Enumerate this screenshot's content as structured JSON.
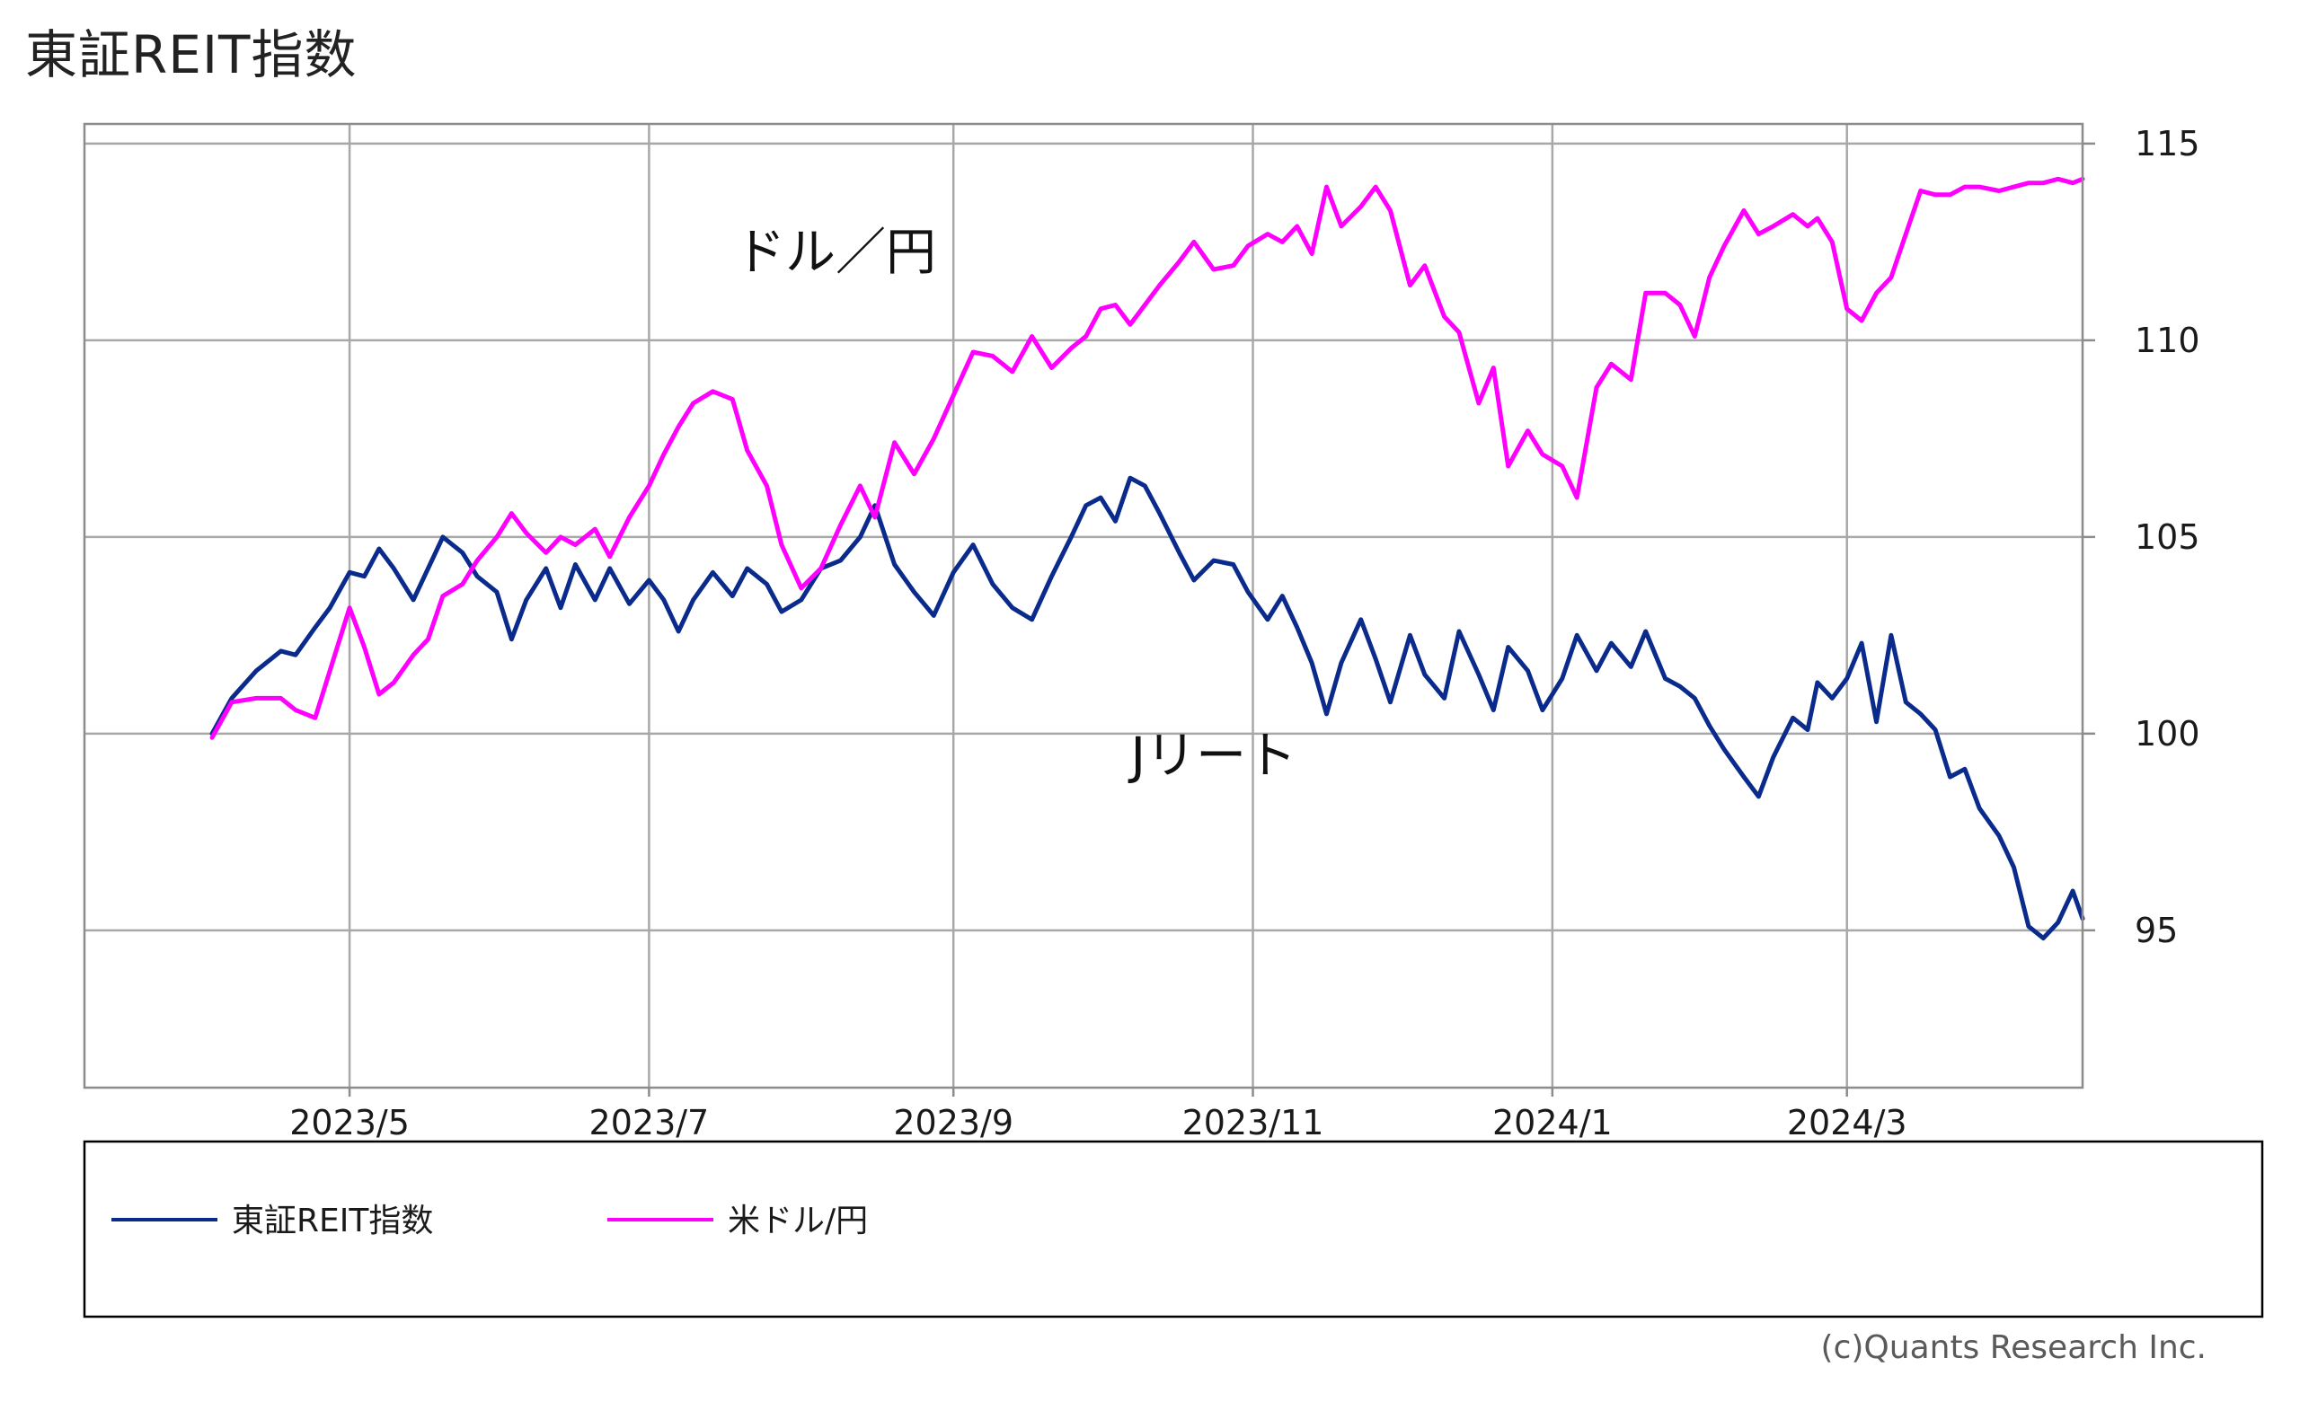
{
  "page": {
    "title": "東証REIT指数",
    "copyright": "(c)Quants Research Inc."
  },
  "chart_data": {
    "type": "line",
    "title": "東証REIT指数",
    "x_axis": {
      "type": "date",
      "range": [
        "2023-03-08",
        "2024-04-18"
      ],
      "tick_labels": [
        {
          "date": "2023-05-01",
          "label": "2023/5"
        },
        {
          "date": "2023-07-01",
          "label": "2023/7"
        },
        {
          "date": "2023-09-01",
          "label": "2023/9"
        },
        {
          "date": "2023-11-01",
          "label": "2023/11"
        },
        {
          "date": "2024-01-01",
          "label": "2024/1"
        },
        {
          "date": "2024-03-01",
          "label": "2024/3"
        }
      ]
    },
    "y_axis": {
      "position": "right",
      "range": [
        91,
        115.5
      ],
      "ticks": [
        95,
        100,
        105,
        110,
        115
      ]
    },
    "grid": true,
    "legend_position": "bottom",
    "series": [
      {
        "name": "東証REIT指数",
        "color": "#0a2b8c",
        "points": [
          [
            "2023-04-03",
            100.0
          ],
          [
            "2023-04-07",
            100.9
          ],
          [
            "2023-04-12",
            101.6
          ],
          [
            "2023-04-17",
            102.1
          ],
          [
            "2023-04-20",
            102.0
          ],
          [
            "2023-04-24",
            102.7
          ],
          [
            "2023-04-27",
            103.2
          ],
          [
            "2023-05-01",
            104.1
          ],
          [
            "2023-05-04",
            104.0
          ],
          [
            "2023-05-07",
            104.7
          ],
          [
            "2023-05-10",
            104.2
          ],
          [
            "2023-05-14",
            103.4
          ],
          [
            "2023-05-17",
            104.2
          ],
          [
            "2023-05-20",
            105.0
          ],
          [
            "2023-05-24",
            104.6
          ],
          [
            "2023-05-27",
            104.0
          ],
          [
            "2023-05-31",
            103.6
          ],
          [
            "2023-06-03",
            102.4
          ],
          [
            "2023-06-06",
            103.4
          ],
          [
            "2023-06-10",
            104.2
          ],
          [
            "2023-06-13",
            103.2
          ],
          [
            "2023-06-16",
            104.3
          ],
          [
            "2023-06-20",
            103.4
          ],
          [
            "2023-06-23",
            104.2
          ],
          [
            "2023-06-27",
            103.3
          ],
          [
            "2023-07-01",
            103.9
          ],
          [
            "2023-07-04",
            103.4
          ],
          [
            "2023-07-07",
            102.6
          ],
          [
            "2023-07-10",
            103.4
          ],
          [
            "2023-07-14",
            104.1
          ],
          [
            "2023-07-18",
            103.5
          ],
          [
            "2023-07-21",
            104.2
          ],
          [
            "2023-07-25",
            103.8
          ],
          [
            "2023-07-28",
            103.1
          ],
          [
            "2023-08-01",
            103.4
          ],
          [
            "2023-08-05",
            104.2
          ],
          [
            "2023-08-09",
            104.4
          ],
          [
            "2023-08-13",
            105.0
          ],
          [
            "2023-08-16",
            105.8
          ],
          [
            "2023-08-20",
            104.3
          ],
          [
            "2023-08-24",
            103.6
          ],
          [
            "2023-08-28",
            103.0
          ],
          [
            "2023-09-01",
            104.1
          ],
          [
            "2023-09-05",
            104.8
          ],
          [
            "2023-09-09",
            103.8
          ],
          [
            "2023-09-13",
            103.2
          ],
          [
            "2023-09-17",
            102.9
          ],
          [
            "2023-09-21",
            104.0
          ],
          [
            "2023-09-25",
            105.0
          ],
          [
            "2023-09-28",
            105.8
          ],
          [
            "2023-10-01",
            106.0
          ],
          [
            "2023-10-04",
            105.4
          ],
          [
            "2023-10-07",
            106.5
          ],
          [
            "2023-10-10",
            106.3
          ],
          [
            "2023-10-13",
            105.6
          ],
          [
            "2023-10-17",
            104.6
          ],
          [
            "2023-10-20",
            103.9
          ],
          [
            "2023-10-24",
            104.4
          ],
          [
            "2023-10-28",
            104.3
          ],
          [
            "2023-10-31",
            103.6
          ],
          [
            "2023-11-04",
            102.9
          ],
          [
            "2023-11-07",
            103.5
          ],
          [
            "2023-11-10",
            102.7
          ],
          [
            "2023-11-13",
            101.8
          ],
          [
            "2023-11-16",
            100.5
          ],
          [
            "2023-11-19",
            101.8
          ],
          [
            "2023-11-23",
            102.9
          ],
          [
            "2023-11-26",
            101.9
          ],
          [
            "2023-11-29",
            100.8
          ],
          [
            "2023-12-03",
            102.5
          ],
          [
            "2023-12-06",
            101.5
          ],
          [
            "2023-12-10",
            100.9
          ],
          [
            "2023-12-13",
            102.6
          ],
          [
            "2023-12-17",
            101.5
          ],
          [
            "2023-12-20",
            100.6
          ],
          [
            "2023-12-23",
            102.2
          ],
          [
            "2023-12-27",
            101.6
          ],
          [
            "2023-12-30",
            100.6
          ],
          [
            "2024-01-03",
            101.4
          ],
          [
            "2024-01-06",
            102.5
          ],
          [
            "2024-01-10",
            101.6
          ],
          [
            "2024-01-13",
            102.3
          ],
          [
            "2024-01-17",
            101.7
          ],
          [
            "2024-01-20",
            102.6
          ],
          [
            "2024-01-24",
            101.4
          ],
          [
            "2024-01-27",
            101.2
          ],
          [
            "2024-01-30",
            100.9
          ],
          [
            "2024-02-02",
            100.2
          ],
          [
            "2024-02-05",
            99.6
          ],
          [
            "2024-02-09",
            98.9
          ],
          [
            "2024-02-12",
            98.4
          ],
          [
            "2024-02-15",
            99.4
          ],
          [
            "2024-02-19",
            100.4
          ],
          [
            "2024-02-22",
            100.1
          ],
          [
            "2024-02-24",
            101.3
          ],
          [
            "2024-02-27",
            100.9
          ],
          [
            "2024-03-01",
            101.4
          ],
          [
            "2024-03-04",
            102.3
          ],
          [
            "2024-03-07",
            100.3
          ],
          [
            "2024-03-10",
            102.5
          ],
          [
            "2024-03-13",
            100.8
          ],
          [
            "2024-03-16",
            100.5
          ],
          [
            "2024-03-19",
            100.1
          ],
          [
            "2024-03-22",
            98.9
          ],
          [
            "2024-03-25",
            99.1
          ],
          [
            "2024-03-28",
            98.1
          ],
          [
            "2024-04-01",
            97.4
          ],
          [
            "2024-04-04",
            96.6
          ],
          [
            "2024-04-07",
            95.1
          ],
          [
            "2024-04-10",
            94.8
          ],
          [
            "2024-04-13",
            95.2
          ],
          [
            "2024-04-16",
            96.0
          ],
          [
            "2024-04-18",
            95.3
          ]
        ]
      },
      {
        "name": "米ドル/円",
        "color": "#ff00ff",
        "points": [
          [
            "2023-04-03",
            99.9
          ],
          [
            "2023-04-07",
            100.8
          ],
          [
            "2023-04-12",
            100.9
          ],
          [
            "2023-04-17",
            100.9
          ],
          [
            "2023-04-20",
            100.6
          ],
          [
            "2023-04-24",
            100.4
          ],
          [
            "2023-04-27",
            101.6
          ],
          [
            "2023-05-01",
            103.2
          ],
          [
            "2023-05-04",
            102.2
          ],
          [
            "2023-05-07",
            101.0
          ],
          [
            "2023-05-10",
            101.3
          ],
          [
            "2023-05-14",
            102.0
          ],
          [
            "2023-05-17",
            102.4
          ],
          [
            "2023-05-20",
            103.5
          ],
          [
            "2023-05-24",
            103.8
          ],
          [
            "2023-05-27",
            104.4
          ],
          [
            "2023-05-31",
            105.0
          ],
          [
            "2023-06-03",
            105.6
          ],
          [
            "2023-06-06",
            105.1
          ],
          [
            "2023-06-10",
            104.6
          ],
          [
            "2023-06-13",
            105.0
          ],
          [
            "2023-06-16",
            104.8
          ],
          [
            "2023-06-20",
            105.2
          ],
          [
            "2023-06-23",
            104.5
          ],
          [
            "2023-06-27",
            105.5
          ],
          [
            "2023-07-01",
            106.3
          ],
          [
            "2023-07-04",
            107.1
          ],
          [
            "2023-07-07",
            107.8
          ],
          [
            "2023-07-10",
            108.4
          ],
          [
            "2023-07-14",
            108.7
          ],
          [
            "2023-07-18",
            108.5
          ],
          [
            "2023-07-21",
            107.2
          ],
          [
            "2023-07-25",
            106.3
          ],
          [
            "2023-07-28",
            104.8
          ],
          [
            "2023-08-01",
            103.7
          ],
          [
            "2023-08-05",
            104.2
          ],
          [
            "2023-08-09",
            105.3
          ],
          [
            "2023-08-13",
            106.3
          ],
          [
            "2023-08-16",
            105.5
          ],
          [
            "2023-08-20",
            107.4
          ],
          [
            "2023-08-24",
            106.6
          ],
          [
            "2023-08-28",
            107.5
          ],
          [
            "2023-09-01",
            108.6
          ],
          [
            "2023-09-05",
            109.7
          ],
          [
            "2023-09-09",
            109.6
          ],
          [
            "2023-09-13",
            109.2
          ],
          [
            "2023-09-17",
            110.1
          ],
          [
            "2023-09-21",
            109.3
          ],
          [
            "2023-09-25",
            109.8
          ],
          [
            "2023-09-28",
            110.1
          ],
          [
            "2023-10-01",
            110.8
          ],
          [
            "2023-10-04",
            110.9
          ],
          [
            "2023-10-07",
            110.4
          ],
          [
            "2023-10-10",
            110.9
          ],
          [
            "2023-10-13",
            111.4
          ],
          [
            "2023-10-17",
            112.0
          ],
          [
            "2023-10-20",
            112.5
          ],
          [
            "2023-10-24",
            111.8
          ],
          [
            "2023-10-28",
            111.9
          ],
          [
            "2023-10-31",
            112.4
          ],
          [
            "2023-11-04",
            112.7
          ],
          [
            "2023-11-07",
            112.5
          ],
          [
            "2023-11-10",
            112.9
          ],
          [
            "2023-11-13",
            112.2
          ],
          [
            "2023-11-16",
            113.9
          ],
          [
            "2023-11-19",
            112.9
          ],
          [
            "2023-11-23",
            113.4
          ],
          [
            "2023-11-26",
            113.9
          ],
          [
            "2023-11-29",
            113.3
          ],
          [
            "2023-12-03",
            111.4
          ],
          [
            "2023-12-06",
            111.9
          ],
          [
            "2023-12-10",
            110.6
          ],
          [
            "2023-12-13",
            110.2
          ],
          [
            "2023-12-17",
            108.4
          ],
          [
            "2023-12-20",
            109.3
          ],
          [
            "2023-12-23",
            106.8
          ],
          [
            "2023-12-27",
            107.7
          ],
          [
            "2023-12-30",
            107.1
          ],
          [
            "2024-01-03",
            106.8
          ],
          [
            "2024-01-06",
            106.0
          ],
          [
            "2024-01-10",
            108.8
          ],
          [
            "2024-01-13",
            109.4
          ],
          [
            "2024-01-17",
            109.0
          ],
          [
            "2024-01-20",
            111.2
          ],
          [
            "2024-01-24",
            111.2
          ],
          [
            "2024-01-27",
            110.9
          ],
          [
            "2024-01-30",
            110.1
          ],
          [
            "2024-02-02",
            111.6
          ],
          [
            "2024-02-05",
            112.4
          ],
          [
            "2024-02-09",
            113.3
          ],
          [
            "2024-02-12",
            112.7
          ],
          [
            "2024-02-15",
            112.9
          ],
          [
            "2024-02-19",
            113.2
          ],
          [
            "2024-02-22",
            112.9
          ],
          [
            "2024-02-24",
            113.1
          ],
          [
            "2024-02-27",
            112.5
          ],
          [
            "2024-03-01",
            110.8
          ],
          [
            "2024-03-04",
            110.5
          ],
          [
            "2024-03-07",
            111.2
          ],
          [
            "2024-03-10",
            111.6
          ],
          [
            "2024-03-13",
            112.7
          ],
          [
            "2024-03-16",
            113.8
          ],
          [
            "2024-03-19",
            113.7
          ],
          [
            "2024-03-22",
            113.7
          ],
          [
            "2024-03-25",
            113.9
          ],
          [
            "2024-03-28",
            113.9
          ],
          [
            "2024-04-01",
            113.8
          ],
          [
            "2024-04-04",
            113.9
          ],
          [
            "2024-04-07",
            114.0
          ],
          [
            "2024-04-10",
            114.0
          ],
          [
            "2024-04-13",
            114.1
          ],
          [
            "2024-04-16",
            114.0
          ],
          [
            "2024-04-18",
            114.1
          ]
        ]
      }
    ],
    "annotations": [
      {
        "text": "ドル／円",
        "date": "2023-08-08",
        "value": 111.8
      },
      {
        "text": "Jリート",
        "date": "2023-10-24",
        "value": 99.0
      }
    ],
    "legend": {
      "items": [
        {
          "label": "東証REIT指数",
          "color": "#0a2b8c"
        },
        {
          "label": "米ドル/円",
          "color": "#ff00ff"
        }
      ]
    }
  }
}
